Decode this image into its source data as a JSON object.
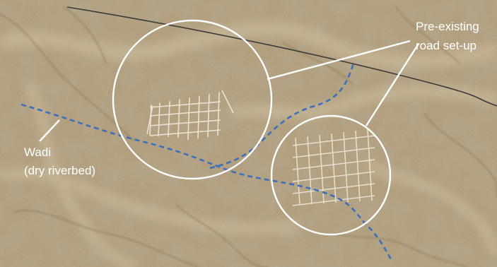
{
  "map": {
    "labels": {
      "road_setup_line1": "Pre-existing",
      "road_setup_line2": "road set-up",
      "wadi_line1": "Wadi",
      "wadi_line2": "(dry riverbed)"
    },
    "colors": {
      "terrain_base": "#b09d7c",
      "terrain_light": "#cdbd9e",
      "terrain_dark": "#8f7b5c",
      "wadi_dashed": "#3f6fb8",
      "road": "#3a3a3a",
      "callout": "#ffffff",
      "grid_lines": "#f4efe4"
    }
  }
}
